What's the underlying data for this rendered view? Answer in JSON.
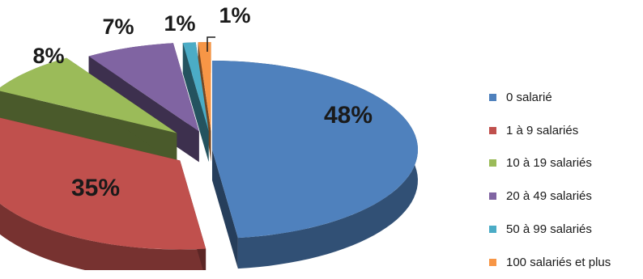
{
  "chart_data": {
    "type": "pie",
    "title": "",
    "legend_position": "right",
    "style": "3d-exploded",
    "series": [
      {
        "labels": [
          "0 salarié",
          "1 à 9 salariés",
          "10 à 19 salariés",
          "20 à 49 salariés",
          "50 à 99 salariés",
          "100 salariés et plus"
        ],
        "values": [
          48,
          35,
          8,
          7,
          1,
          1
        ],
        "data_labels": [
          "48%",
          "35%",
          "8%",
          "7%",
          "1%",
          "1%"
        ],
        "colors": [
          "#4F81BD",
          "#C0504D",
          "#9BBB59",
          "#8064A2",
          "#4BACC6",
          "#F79646"
        ]
      }
    ]
  }
}
